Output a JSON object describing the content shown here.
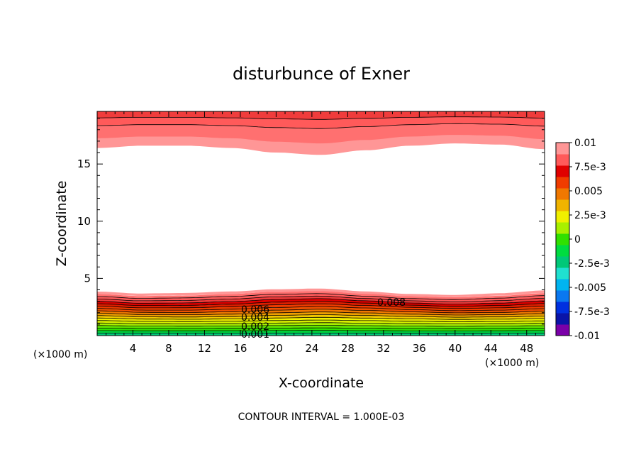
{
  "chart_data": {
    "type": "heatmap",
    "title": "disturbunce of Exner",
    "xlabel": "X-coordinate",
    "ylabel": "Z-coordinate",
    "x_unit_left": "(×1000 m)",
    "x_unit_right": "(×1000 m)",
    "footer": "CONTOUR INTERVAL = 1.000E-03",
    "xlim": [
      0,
      50
    ],
    "ylim": [
      0,
      19.6
    ],
    "x_ticks": [
      4,
      8,
      12,
      16,
      20,
      24,
      28,
      32,
      36,
      40,
      44,
      48
    ],
    "y_ticks": [
      5,
      10,
      15
    ],
    "grid": false,
    "colorbar": {
      "range": [
        -0.01,
        0.01
      ],
      "step": 0.00125,
      "tick_labels": [
        "0.01",
        "7.5e-3",
        "0.005",
        "2.5e-3",
        "0",
        "-2.5e-3",
        "-0.005",
        "-7.5e-3",
        "-0.01"
      ],
      "colors": [
        "#7a00a8",
        "#0a14a8",
        "#0030e0",
        "#0a78f0",
        "#00b4f0",
        "#20e0d0",
        "#00c878",
        "#00dc40",
        "#30e000",
        "#a8f000",
        "#f0f000",
        "#f0b400",
        "#f07800",
        "#f03c00",
        "#e00000",
        "#ff5a5a",
        "#ff9696"
      ]
    },
    "contour_labels": [
      "0.008",
      "0.006",
      "0.004",
      "0.002",
      "0.001"
    ],
    "bottom_layer": {
      "x": [
        0,
        5,
        10,
        15,
        20,
        25,
        30,
        35,
        40,
        45,
        50
      ],
      "top_z": [
        3.9,
        3.7,
        3.7,
        3.8,
        4.0,
        4.1,
        3.9,
        3.7,
        3.6,
        3.7,
        3.9
      ],
      "levels_per_km": 2.5
    },
    "top_layer": {
      "x": [
        0,
        5,
        10,
        15,
        20,
        25,
        30,
        35,
        40,
        45,
        50
      ],
      "bottom_z": [
        16.4,
        16.6,
        16.6,
        16.4,
        16.0,
        15.8,
        16.2,
        16.6,
        16.8,
        16.7,
        16.3
      ],
      "bands": [
        {
          "z_at_base_offset": 0.0,
          "color": "#ff9696"
        },
        {
          "z_at_base_offset": 1.0,
          "color": "#ff7070"
        },
        {
          "z_at_base_offset": 2.3,
          "color": "#ff5a5a"
        },
        {
          "z_at_base_offset": 3.1,
          "color": "#f03c3c"
        }
      ]
    }
  }
}
